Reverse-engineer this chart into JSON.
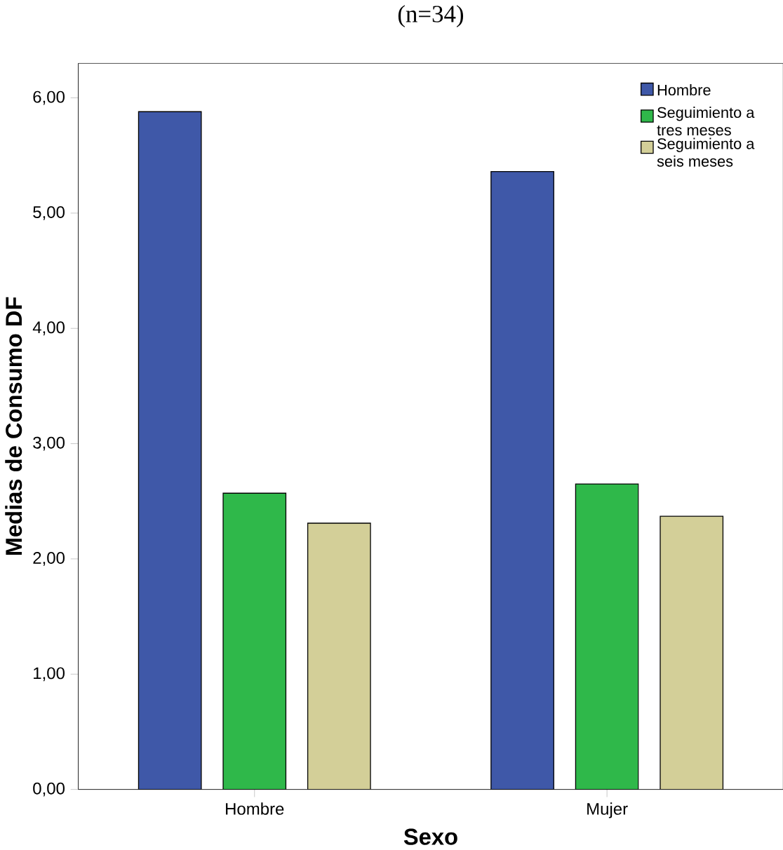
{
  "chart_data": {
    "type": "bar",
    "title": "(n=34)",
    "xlabel": "Sexo",
    "ylabel": "Medias de Consumo DF",
    "categories": [
      "Hombre",
      "Mujer"
    ],
    "series": [
      {
        "name": "Hombre",
        "color": "#3f58a8",
        "values": [
          5.88,
          5.36
        ]
      },
      {
        "name": "Seguimiento a tres meses",
        "color": "#2fb84a",
        "values": [
          2.57,
          2.65
        ]
      },
      {
        "name": "Seguimiento a seis meses",
        "color": "#d3cf98",
        "values": [
          2.31,
          2.37
        ]
      }
    ],
    "ylim": [
      0,
      6.3
    ],
    "yticks": [
      {
        "value": 0,
        "label": "0,00"
      },
      {
        "value": 1,
        "label": "1,00"
      },
      {
        "value": 2,
        "label": "2,00"
      },
      {
        "value": 3,
        "label": "3,00"
      },
      {
        "value": 4,
        "label": "4,00"
      },
      {
        "value": 5,
        "label": "5,00"
      },
      {
        "value": 6,
        "label": "6,00"
      }
    ],
    "legend": "top right"
  }
}
